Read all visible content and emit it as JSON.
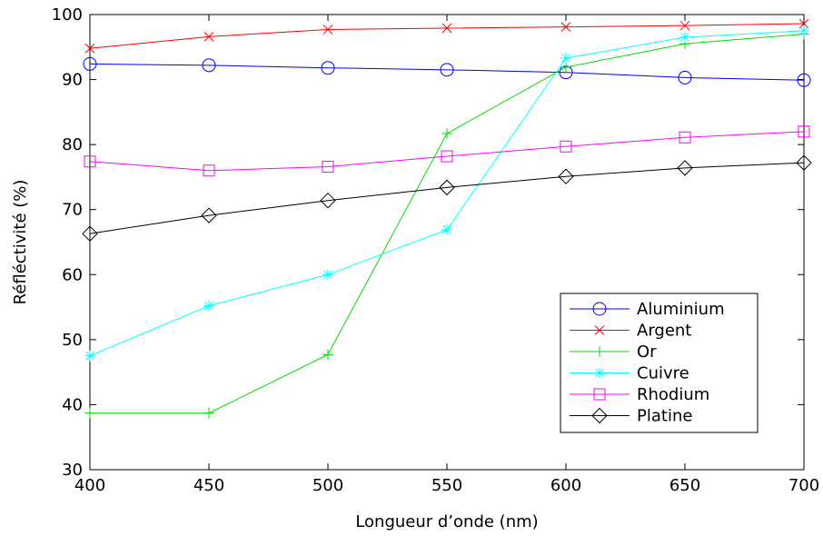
{
  "chart_data": {
    "type": "line",
    "xlabel": "Longueur d’onde (nm)",
    "ylabel": "Réfléctivité (%)",
    "xlim": [
      400,
      700
    ],
    "ylim": [
      30,
      100
    ],
    "xticks": [
      400,
      450,
      500,
      550,
      600,
      650,
      700
    ],
    "yticks": [
      30,
      40,
      50,
      60,
      70,
      80,
      90,
      100
    ],
    "grid": false,
    "legend_position": "lower-right",
    "x": [
      400,
      450,
      500,
      550,
      600,
      650,
      700
    ],
    "series": [
      {
        "name": "Aluminium",
        "color": "#0000ff",
        "marker": "circle",
        "values": [
          92.4,
          92.2,
          91.8,
          91.5,
          91.1,
          90.3,
          89.9
        ]
      },
      {
        "name": "Argent",
        "color": "#ff0000",
        "marker": "x",
        "values": [
          94.8,
          96.6,
          97.7,
          97.9,
          98.1,
          98.3,
          98.6
        ]
      },
      {
        "name": "Or",
        "color": "#00dd00",
        "marker": "plus",
        "values": [
          38.7,
          38.7,
          47.7,
          81.7,
          91.9,
          95.5,
          97.0
        ]
      },
      {
        "name": "Cuivre",
        "color": "#00ffff",
        "marker": "star",
        "values": [
          47.5,
          55.2,
          60.0,
          66.9,
          93.3,
          96.5,
          97.5
        ]
      },
      {
        "name": "Rhodium",
        "color": "#ff00ff",
        "marker": "square",
        "values": [
          77.4,
          76.0,
          76.6,
          78.2,
          79.7,
          81.1,
          82.0
        ]
      },
      {
        "name": "Platine",
        "color": "#000000",
        "marker": "diamond",
        "values": [
          66.3,
          69.1,
          71.4,
          73.4,
          75.1,
          76.4,
          77.2
        ]
      }
    ]
  }
}
